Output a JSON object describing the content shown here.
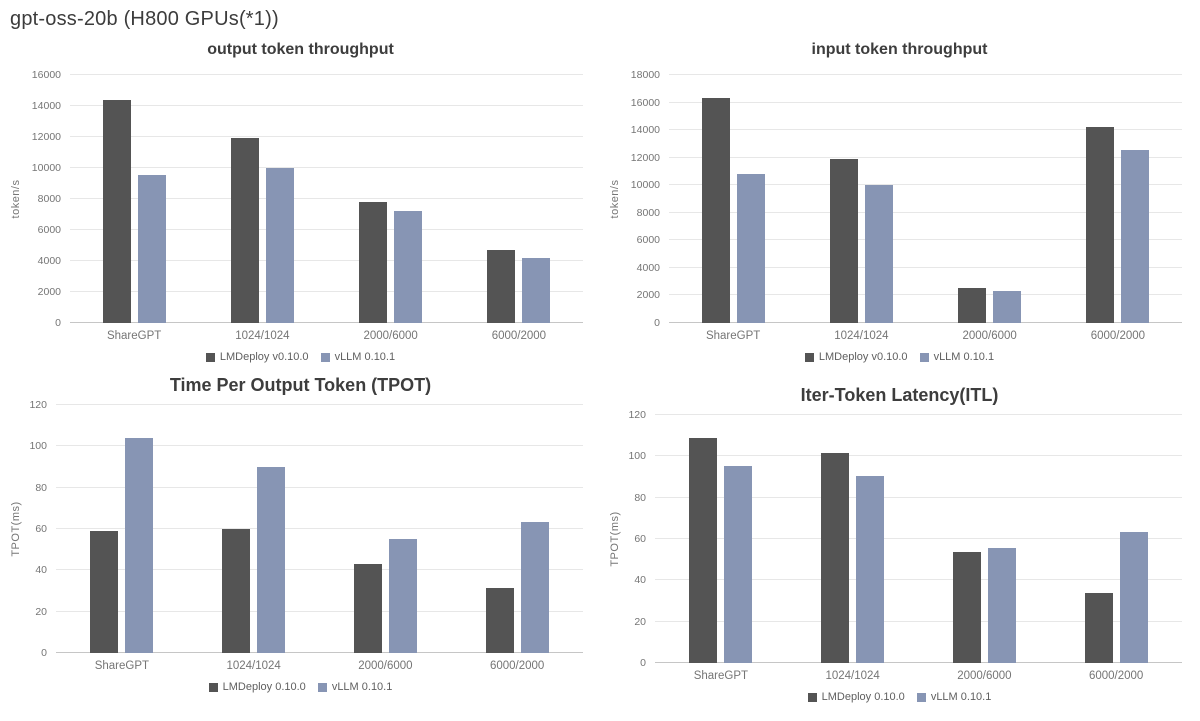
{
  "page": {
    "title": "gpt-oss-20b (H800 GPUs(*1))"
  },
  "colors": {
    "lmdeploy_bar": "#545454",
    "vllm_bar": "#8795b4",
    "gridline": "#e7e7e7",
    "baseline": "#c6c6c6",
    "tick_text": "#757575",
    "title_text": "#3d3d3d"
  },
  "chart_data": [
    {
      "type": "bar",
      "title": "output token throughput",
      "xlabel": "",
      "ylabel": "token/s",
      "categories": [
        "ShareGPT",
        "1024/1024",
        "2000/6000",
        "6000/2000"
      ],
      "series": [
        {
          "name": "LMDeploy v0.10.0",
          "color": "#545454",
          "values": [
            14400,
            11950,
            7800,
            4700
          ]
        },
        {
          "name": "vLLM 0.10.1",
          "color": "#8795b4",
          "values": [
            9550,
            10000,
            7250,
            4200
          ]
        }
      ],
      "ylim": [
        0,
        16000
      ],
      "ytick_step": 2000,
      "grid": true,
      "legend_position": "bottom"
    },
    {
      "type": "bar",
      "title": "input token throughput",
      "xlabel": "",
      "ylabel": "token/s",
      "categories": [
        "ShareGPT",
        "1024/1024",
        "2000/6000",
        "6000/2000"
      ],
      "series": [
        {
          "name": "LMDeploy v0.10.0",
          "color": "#545454",
          "values": [
            16350,
            11900,
            2550,
            14250
          ]
        },
        {
          "name": "vLLM 0.10.1",
          "color": "#8795b4",
          "values": [
            10850,
            10000,
            2350,
            12550
          ]
        }
      ],
      "ylim": [
        0,
        18000
      ],
      "ytick_step": 2000,
      "grid": true,
      "legend_position": "bottom"
    },
    {
      "type": "bar",
      "title": "Time Per Output Token (TPOT)",
      "xlabel": "",
      "ylabel": "TPOT(ms)",
      "categories": [
        "ShareGPT",
        "1024/1024",
        "2000/6000",
        "6000/2000"
      ],
      "series": [
        {
          "name": "LMDeploy 0.10.0",
          "color": "#545454",
          "values": [
            59,
            60,
            43,
            31.5
          ]
        },
        {
          "name": "vLLM 0.10.1",
          "color": "#8795b4",
          "values": [
            104,
            90,
            55,
            63.5
          ]
        }
      ],
      "ylim": [
        0,
        120
      ],
      "ytick_step": 20,
      "grid": true,
      "legend_position": "bottom"
    },
    {
      "type": "bar",
      "title": "Iter-Token Latency(ITL)",
      "xlabel": "",
      "ylabel": "TPOT(ms)",
      "categories": [
        "ShareGPT",
        "1024/1024",
        "2000/6000",
        "6000/2000"
      ],
      "series": [
        {
          "name": "LMDeploy 0.10.0",
          "color": "#545454",
          "values": [
            109,
            101.5,
            53.5,
            34
          ]
        },
        {
          "name": "vLLM 0.10.1",
          "color": "#8795b4",
          "values": [
            95.5,
            90.5,
            55.5,
            63.5
          ]
        }
      ],
      "ylim": [
        0,
        120
      ],
      "ytick_step": 20,
      "grid": true,
      "legend_position": "bottom"
    }
  ]
}
